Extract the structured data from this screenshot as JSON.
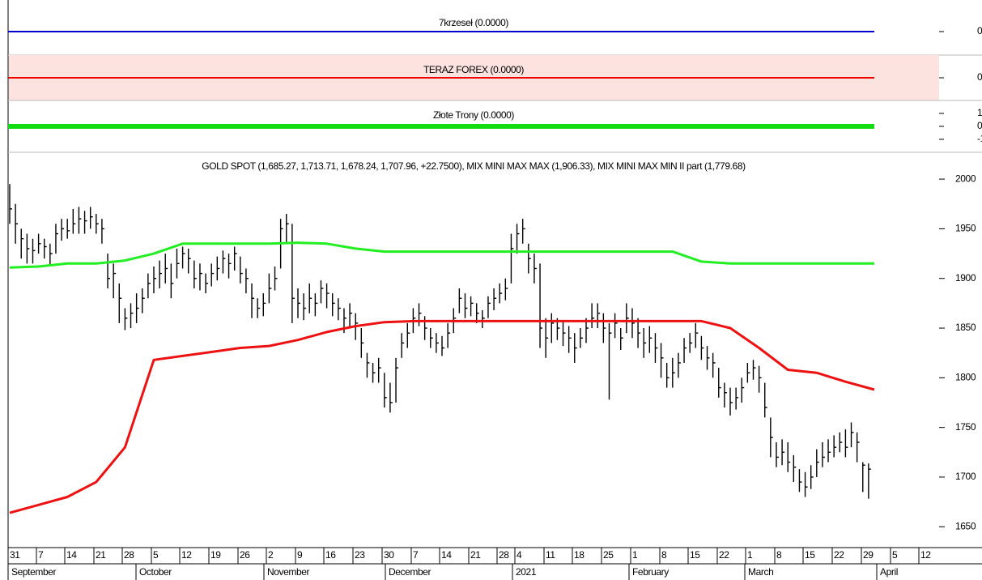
{
  "chart_data": [
    {
      "type": "line",
      "title": "7krzeseł (0.0000)",
      "value": 0,
      "color": "#0000cc",
      "line_width": 2,
      "ylim": [
        -1,
        1
      ],
      "yticks": [
        0
      ]
    },
    {
      "type": "line",
      "title": "TERAZ FOREX (0.0000)",
      "value": 0,
      "color": "#ee0000",
      "line_width": 2,
      "background": "#fde3e0",
      "ylim": [
        -1,
        1
      ],
      "yticks": [
        0
      ]
    },
    {
      "type": "line",
      "title": "Złote Trony (0.0000)",
      "value": 0,
      "color": "#11dd11",
      "line_width": 6,
      "ylim": [
        -2,
        2
      ],
      "yticks": [
        -1,
        0,
        1
      ]
    },
    {
      "type": "ohlc",
      "title": "GOLD SPOT (1,685.27, 1,713.71, 1,678.24, 1,707.96, +22.7500), MIX MINI MAX MAX (1,906.33), MIX MINI MAX MIN II part (1,779.68)",
      "ylim": [
        1629,
        2027
      ],
      "yticks": [
        1650,
        1700,
        1750,
        1800,
        1850,
        1900,
        1950,
        2000
      ],
      "x_tick_labels": [
        "31",
        "7",
        "14",
        "21",
        "28",
        "5",
        "12",
        "19",
        "26",
        "2",
        "9",
        "16",
        "23",
        "30",
        "7",
        "14",
        "21",
        "28",
        "4",
        "11",
        "18",
        "25",
        "1",
        "8",
        "15",
        "22",
        "1",
        "8",
        "15",
        "22",
        "29",
        "5",
        "12"
      ],
      "x_group_labels": [
        "September",
        "October",
        "November",
        "December",
        "2021",
        "February",
        "March",
        "April"
      ],
      "bar_color": "#000000",
      "high": [
        1995,
        1975,
        1950,
        1945,
        1940,
        1945,
        1940,
        1935,
        1955,
        1960,
        1960,
        1970,
        1972,
        1968,
        1972,
        1965,
        1960,
        1925,
        1915,
        1895,
        1870,
        1875,
        1885,
        1890,
        1905,
        1912,
        1918,
        1925,
        1915,
        1930,
        1932,
        1930,
        1918,
        1915,
        1905,
        1915,
        1922,
        1928,
        1925,
        1932,
        1922,
        1910,
        1895,
        1880,
        1885,
        1905,
        1912,
        1960,
        1965,
        1955,
        1890,
        1885,
        1895,
        1885,
        1898,
        1895,
        1885,
        1880,
        1870,
        1875,
        1865,
        1850,
        1825,
        1815,
        1820,
        1805,
        1795,
        1820,
        1845,
        1855,
        1870,
        1875,
        1862,
        1850,
        1845,
        1842,
        1855,
        1870,
        1890,
        1885,
        1882,
        1875,
        1868,
        1882,
        1890,
        1895,
        1900,
        1945,
        1955,
        1960,
        1935,
        1925,
        1915,
        1860,
        1865,
        1860,
        1858,
        1852,
        1845,
        1850,
        1860,
        1875,
        1875,
        1865,
        1855,
        1865,
        1850,
        1875,
        1870,
        1860,
        1850,
        1852,
        1845,
        1835,
        1815,
        1820,
        1825,
        1840,
        1845,
        1855,
        1842,
        1832,
        1825,
        1810,
        1795,
        1790,
        1790,
        1800,
        1815,
        1818,
        1812,
        1795,
        1760,
        1735,
        1738,
        1735,
        1722,
        1708,
        1705,
        1712,
        1728,
        1735,
        1738,
        1742,
        1745,
        1748,
        1755,
        1745,
        1715,
        1713.71
      ],
      "low": [
        1955,
        1935,
        1920,
        1915,
        1915,
        1925,
        1920,
        1912,
        1925,
        1938,
        1940,
        1945,
        1945,
        1945,
        1950,
        1945,
        1935,
        1890,
        1880,
        1855,
        1848,
        1850,
        1855,
        1865,
        1880,
        1885,
        1890,
        1895,
        1880,
        1900,
        1910,
        1905,
        1890,
        1888,
        1885,
        1892,
        1898,
        1905,
        1900,
        1908,
        1895,
        1885,
        1860,
        1860,
        1862,
        1875,
        1888,
        1910,
        1935,
        1855,
        1860,
        1858,
        1865,
        1862,
        1875,
        1870,
        1862,
        1858,
        1845,
        1850,
        1838,
        1820,
        1800,
        1795,
        1795,
        1770,
        1765,
        1775,
        1820,
        1830,
        1845,
        1852,
        1838,
        1830,
        1825,
        1822,
        1830,
        1845,
        1865,
        1860,
        1862,
        1855,
        1850,
        1860,
        1868,
        1875,
        1878,
        1895,
        1925,
        1935,
        1905,
        1895,
        1830,
        1820,
        1835,
        1838,
        1832,
        1825,
        1815,
        1830,
        1835,
        1850,
        1850,
        1835,
        1778,
        1840,
        1828,
        1845,
        1840,
        1830,
        1820,
        1825,
        1815,
        1800,
        1790,
        1790,
        1800,
        1815,
        1825,
        1830,
        1818,
        1808,
        1800,
        1780,
        1770,
        1762,
        1768,
        1775,
        1795,
        1798,
        1785,
        1760,
        1720,
        1710,
        1712,
        1705,
        1695,
        1685,
        1680,
        1688,
        1700,
        1710,
        1715,
        1720,
        1725,
        1720,
        1730,
        1715,
        1685,
        1678.24
      ],
      "close": [
        1970,
        1955,
        1940,
        1930,
        1928,
        1935,
        1932,
        1925,
        1945,
        1950,
        1948,
        1955,
        1960,
        1958,
        1962,
        1955,
        1950,
        1900,
        1905,
        1880,
        1860,
        1865,
        1870,
        1880,
        1895,
        1900,
        1905,
        1910,
        1895,
        1915,
        1925,
        1920,
        1900,
        1905,
        1895,
        1905,
        1910,
        1920,
        1915,
        1925,
        1905,
        1900,
        1880,
        1870,
        1875,
        1890,
        1900,
        1950,
        1955,
        1880,
        1875,
        1870,
        1880,
        1875,
        1890,
        1885,
        1875,
        1870,
        1860,
        1865,
        1855,
        1835,
        1815,
        1805,
        1810,
        1780,
        1775,
        1810,
        1835,
        1845,
        1860,
        1865,
        1850,
        1840,
        1835,
        1830,
        1845,
        1860,
        1880,
        1870,
        1875,
        1865,
        1860,
        1875,
        1880,
        1885,
        1890,
        1930,
        1945,
        1950,
        1920,
        1910,
        1850,
        1840,
        1855,
        1850,
        1845,
        1840,
        1830,
        1840,
        1850,
        1860,
        1865,
        1850,
        1845,
        1855,
        1840,
        1860,
        1855,
        1845,
        1835,
        1840,
        1830,
        1820,
        1800,
        1805,
        1815,
        1830,
        1835,
        1845,
        1830,
        1820,
        1815,
        1790,
        1785,
        1775,
        1780,
        1790,
        1805,
        1810,
        1800,
        1770,
        1740,
        1720,
        1725,
        1715,
        1710,
        1695,
        1690,
        1700,
        1715,
        1720,
        1725,
        1730,
        1735,
        1730,
        1745,
        1735,
        1712,
        1707.96
      ],
      "series": [
        {
          "color": "#22ee22",
          "values": [
            1911,
            1912,
            1915,
            1915,
            1918,
            1925,
            1935,
            1935,
            1935,
            1935,
            1936,
            1935,
            1930,
            1927,
            1927,
            1927,
            1927,
            1927,
            1927,
            1927,
            1927,
            1927,
            1927,
            1927,
            1917,
            1915,
            1915,
            1915,
            1915,
            1915,
            1915
          ]
        },
        {
          "color": "#ee1111",
          "values": [
            1664,
            1672,
            1680,
            1695,
            1730,
            1818,
            1822,
            1826,
            1830,
            1832,
            1838,
            1846,
            1852,
            1856,
            1857,
            1857,
            1857,
            1857,
            1857,
            1857,
            1857,
            1857,
            1857,
            1857,
            1857,
            1850,
            1830,
            1808,
            1805,
            1796,
            1788
          ]
        }
      ]
    }
  ]
}
